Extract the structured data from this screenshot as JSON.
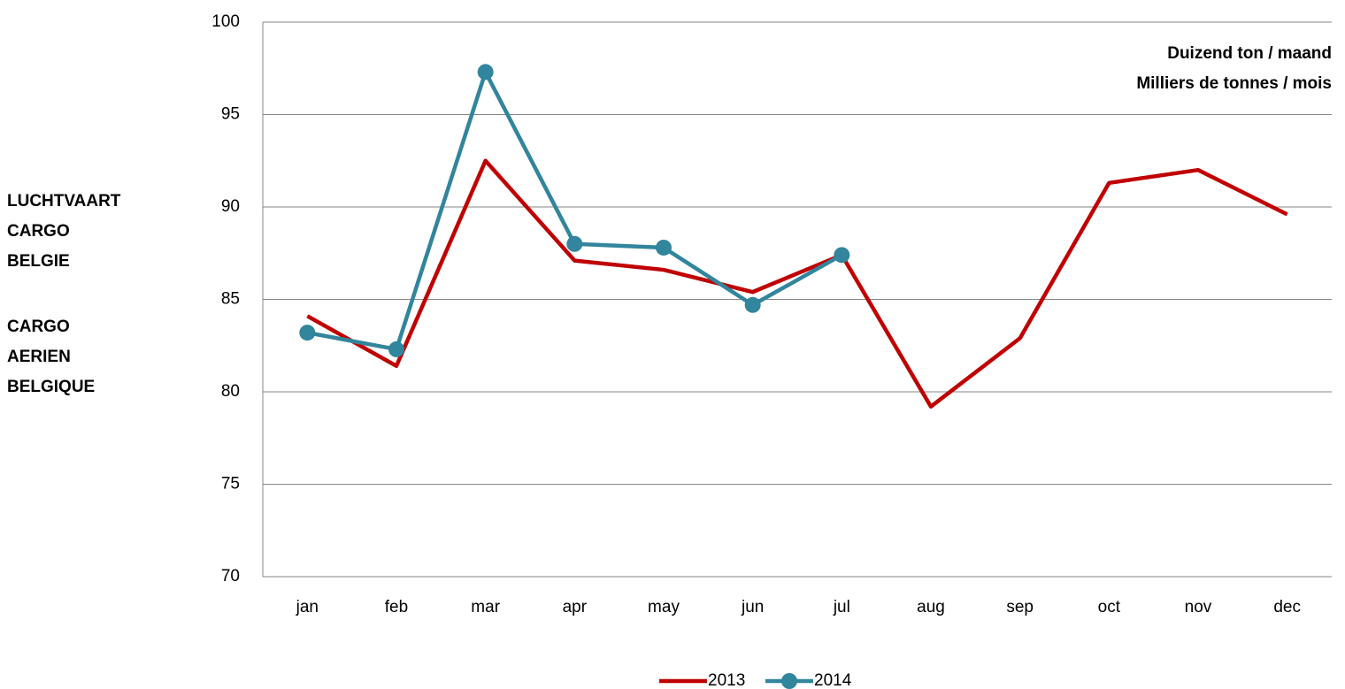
{
  "chart_data": {
    "type": "line",
    "side_labels": [
      [
        "LUCHTVAART",
        "CARGO",
        "BELGIE"
      ],
      [
        "CARGO",
        "AERIEN",
        "BELGIQUE"
      ]
    ],
    "annotation": [
      "Duizend ton / maand",
      "Milliers de tonnes / mois"
    ],
    "categories": [
      "jan",
      "feb",
      "mar",
      "apr",
      "may",
      "jun",
      "jul",
      "aug",
      "sep",
      "oct",
      "nov",
      "dec"
    ],
    "series": [
      {
        "name": "2013",
        "color": "#c00000",
        "marker": false,
        "values": [
          84.1,
          81.4,
          92.5,
          87.1,
          86.6,
          85.4,
          87.4,
          79.2,
          82.9,
          91.3,
          92.0,
          89.6
        ]
      },
      {
        "name": "2014",
        "color": "#31859c",
        "marker": true,
        "values": [
          83.2,
          82.3,
          97.3,
          88.0,
          87.8,
          84.7,
          87.4,
          null,
          null,
          null,
          null,
          null
        ]
      }
    ],
    "ylim": [
      70,
      100
    ],
    "yticks": [
      70,
      75,
      80,
      85,
      90,
      95,
      100
    ],
    "grid": true
  }
}
